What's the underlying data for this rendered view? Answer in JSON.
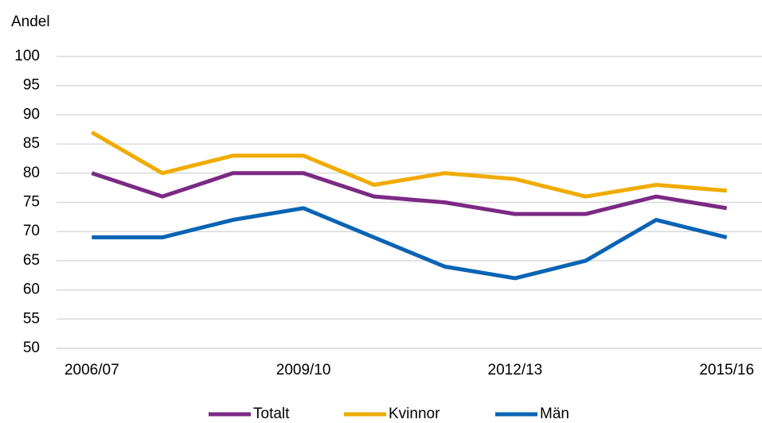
{
  "chart_data": {
    "type": "line",
    "y_label": "Andel",
    "categories": [
      "2006/07",
      null,
      null,
      "2009/10",
      null,
      null,
      "2012/13",
      null,
      null,
      "2015/16"
    ],
    "series": [
      {
        "name": "Totalt",
        "color": "#7b2a84",
        "values": [
          80,
          76,
          80,
          80,
          76,
          75,
          73,
          73,
          76,
          74
        ]
      },
      {
        "name": "Kvinnor",
        "color": "#f0ab00",
        "values": [
          87,
          80,
          83,
          83,
          78,
          80,
          79,
          76,
          78,
          77
        ]
      },
      {
        "name": "Män",
        "color": "#0a64b4",
        "values": [
          69,
          69,
          72,
          74,
          69,
          64,
          62,
          65,
          72,
          69
        ]
      }
    ],
    "ylim": [
      50,
      100
    ],
    "yticks": [
      50,
      55,
      60,
      65,
      70,
      75,
      80,
      85,
      90,
      95,
      100
    ],
    "grid": true,
    "legend": "bottom"
  }
}
